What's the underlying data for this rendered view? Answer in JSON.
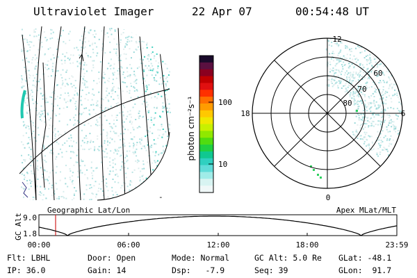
{
  "header": {
    "instrument": "Ultraviolet Imager",
    "date": "22 Apr 07",
    "time": "00:54:48 UT"
  },
  "colorbar": {
    "label": "photon cm⁻²s⁻¹",
    "scale": "log",
    "tick_labels": [
      "100",
      "10"
    ],
    "colors_top_to_bottom": [
      "#1a0a2a",
      "#5a1040",
      "#8a0020",
      "#c00000",
      "#e01010",
      "#ff3000",
      "#ff7000",
      "#ff9c00",
      "#ffc800",
      "#f0e800",
      "#c8f000",
      "#90e800",
      "#50dc10",
      "#20d040",
      "#10c890",
      "#30d0c0",
      "#60dcd8",
      "#a0ece8",
      "#d8f4f2",
      "#f0f8f8"
    ]
  },
  "left_panel": {
    "caption": "Geographic Lat/Lon",
    "tick_mark": "-"
  },
  "polar_plot": {
    "caption": "Apex MLat/MLT",
    "mlt_labels": {
      "top": "12",
      "right": "6",
      "bottom": "0",
      "left": "18"
    },
    "lat_labels": [
      "60",
      "70",
      "80"
    ]
  },
  "altitude_plot": {
    "ylabel": "GC Alt",
    "y_ticks": [
      "9.0",
      "1.8"
    ],
    "x_ticks": [
      "00:00",
      "06:00",
      "12:00",
      "18:00",
      "23:59"
    ],
    "current_time_color": "#d02020"
  },
  "info": {
    "filter": "Flt: LBHL",
    "door": "Door: Open",
    "mode": "Mode: Normal",
    "gc_alt": "GC Alt: 5.0 Re",
    "glat": "GLat: -48.1",
    "ip": "IP: 36.0",
    "gain": "Gain: 14",
    "dsp": "Dsp:   -7.9",
    "seq": "Seq: 39",
    "glon": "GLon:  91.7"
  }
}
